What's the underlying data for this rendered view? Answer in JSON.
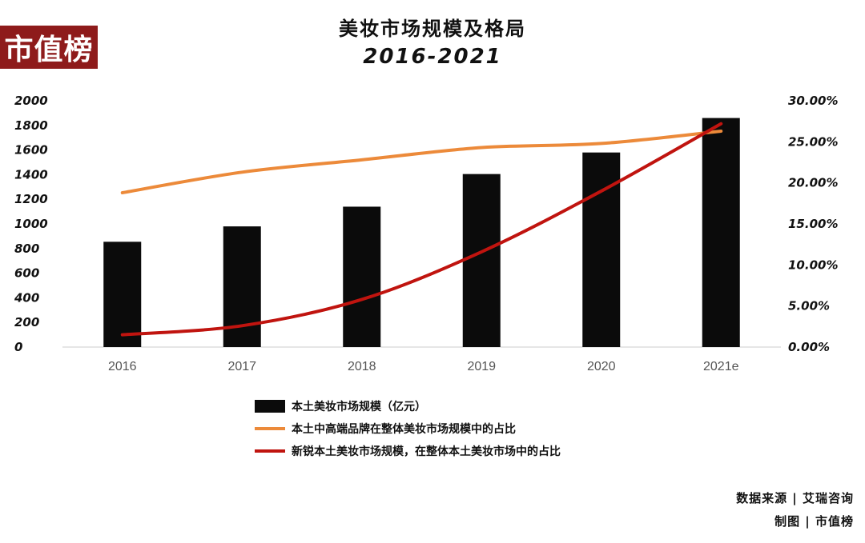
{
  "logo": "市值榜",
  "title": "美妆市场规模及格局",
  "subtitle": "2016-2021",
  "source_line": "数据来源 | 艾瑞咨询",
  "made_by_line": "制图 | 市值榜",
  "colors": {
    "bar": "#0b0b0b",
    "orange": "#ec8a3a",
    "red": "#c0140f"
  },
  "chart_data": {
    "type": "bar",
    "categories": [
      "2016",
      "2017",
      "2018",
      "2019",
      "2020",
      "2021e"
    ],
    "y_left": {
      "ticks": [
        "0",
        "200",
        "400",
        "600",
        "800",
        "1000",
        "1200",
        "1400",
        "1600",
        "1800",
        "2000"
      ],
      "min": 0,
      "max": 2000
    },
    "y_right": {
      "ticks": [
        "0.00%",
        "5.00%",
        "10.00%",
        "15.00%",
        "20.00%",
        "25.00%",
        "30.00%"
      ],
      "min": 0,
      "max": 30
    },
    "series": [
      {
        "name": "本土美妆市场规模（亿元）",
        "type": "bar",
        "axis": "left",
        "values": [
          855,
          980,
          1140,
          1405,
          1580,
          1860
        ]
      },
      {
        "name": "本土中高端品牌在整体美妆市场规模中的占比",
        "type": "line",
        "axis": "right",
        "color": "orange",
        "values": [
          18.8,
          21.3,
          22.8,
          24.3,
          24.8,
          26.3
        ]
      },
      {
        "name": "新锐本土美妆市场规模，在整体本土美妆市场中的占比",
        "type": "line",
        "axis": "right",
        "color": "red",
        "values": [
          1.5,
          2.6,
          5.8,
          11.6,
          19.0,
          27.2
        ]
      }
    ]
  }
}
